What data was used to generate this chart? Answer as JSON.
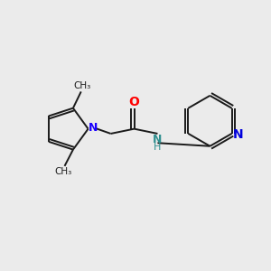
{
  "background_color": "#ebebeb",
  "bond_color": "#1a1a1a",
  "N_pyrrole_color": "#1a00ff",
  "O_color": "#ff0000",
  "N_amide_color": "#2f8f8f",
  "N_py_color": "#0000dd",
  "figsize": [
    3.0,
    3.0
  ],
  "dpi": 100,
  "xlim": [
    0,
    10
  ],
  "ylim": [
    0,
    10
  ]
}
